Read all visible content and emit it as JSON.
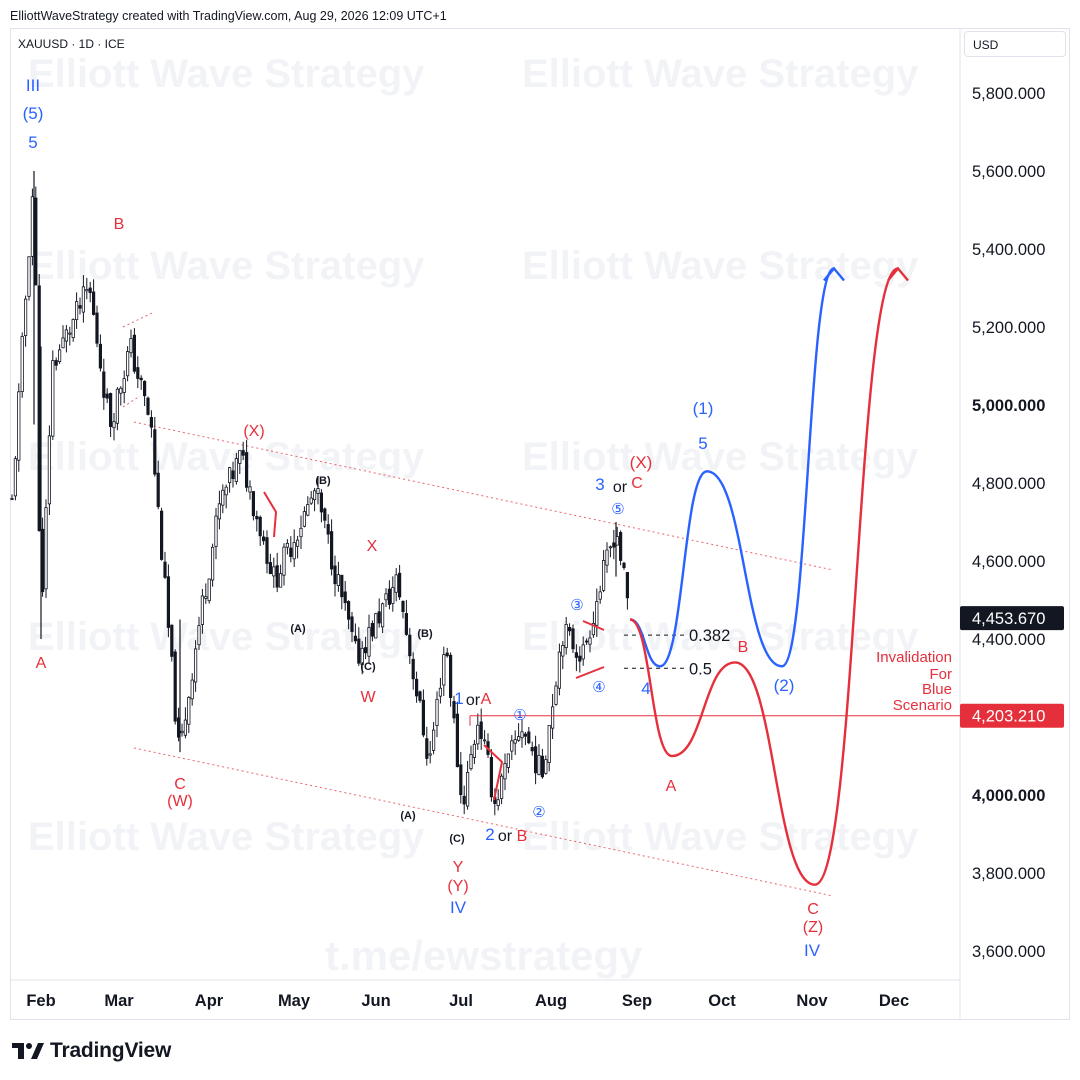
{
  "header": {
    "credit": "ElliottWaveStrategy created with TradingView.com, Aug 29, 2026 12:09 UTC+1",
    "symbol": "XAUUSD · 1D · ICE",
    "currency": "USD"
  },
  "footer": {
    "brand": "TradingView"
  },
  "watermarks": {
    "brand": "Elliott Wave Strategy",
    "channel": "t.me/ewstrategy"
  },
  "colors": {
    "red": "#e5303c",
    "blue": "#2962ff",
    "bull": "#131722",
    "channel": "#e5303c"
  },
  "chart_data": {
    "type": "candlestick",
    "x_ticks": [
      "Feb",
      "Mar",
      "Apr",
      "May",
      "Jun",
      "Jul",
      "Aug",
      "Sep",
      "Oct",
      "Nov",
      "Dec"
    ],
    "y_ticks": [
      "5,800.000",
      "5,600.000",
      "5,400.000",
      "5,200.000",
      "5,000.000",
      "4,800.000",
      "4,600.000",
      "4,400.000",
      "4,000.000",
      "3,800.000",
      "3,600.000"
    ],
    "y_ticks_bold": [
      "5,000.000",
      "4,000.000"
    ],
    "ylim": [
      3540,
      5920
    ],
    "last_price": {
      "label": "4,453.670",
      "value": 4453.67
    },
    "invalidation": {
      "label": "4,203.210",
      "value": 4203.21
    },
    "price_path": [
      [
        "Feb",
        4750
      ],
      [
        "Feb",
        5600
      ],
      [
        "Feb",
        4400
      ],
      [
        "Feb",
        5100
      ],
      [
        "Mar",
        5300
      ],
      [
        "Mar",
        4950
      ],
      [
        "Mar",
        5150
      ],
      [
        "Mar",
        4950
      ],
      [
        "Apr",
        4100
      ],
      [
        "Apr",
        4450
      ],
      [
        "Apr",
        4750
      ],
      [
        "Apr",
        4870
      ],
      [
        "May",
        4550
      ],
      [
        "May",
        4780
      ],
      [
        "Jun",
        4350
      ],
      [
        "Jun",
        4550
      ],
      [
        "Jul",
        4080
      ],
      [
        "Jul",
        4400
      ],
      [
        "Jul",
        3970
      ],
      [
        "Jul",
        4200
      ],
      [
        "Jul",
        3980
      ],
      [
        "Aug",
        4180
      ],
      [
        "Aug",
        4050
      ],
      [
        "Aug",
        4420
      ],
      [
        "Aug",
        4360
      ],
      [
        "Sep",
        4690
      ],
      [
        "Sep",
        4450
      ]
    ],
    "fib_levels": [
      {
        "label": "0.382",
        "value": 4410
      },
      {
        "label": "0.5",
        "value": 4325
      }
    ],
    "projections": [
      {
        "name": "Blue scenario",
        "color": "#2962ff",
        "points": [
          [
            "Sep",
            4450
          ],
          [
            "Sep",
            4330
          ],
          [
            "Oct",
            4830
          ],
          [
            "Nov",
            4330
          ],
          [
            "Dec",
            5350
          ]
        ]
      },
      {
        "name": "Red scenario",
        "color": "#e5303c",
        "points": [
          [
            "Sep",
            4450
          ],
          [
            "Sep",
            4100
          ],
          [
            "Oct",
            4340
          ],
          [
            "Nov",
            3770
          ],
          [
            "Dec",
            5350
          ]
        ]
      }
    ],
    "wave_labels": [
      {
        "text": "III",
        "color": "blue"
      },
      {
        "text": "(5)",
        "color": "blue"
      },
      {
        "text": "5",
        "color": "blue"
      },
      {
        "text": "A",
        "color": "red"
      },
      {
        "text": "B",
        "color": "red"
      },
      {
        "text": "(X)",
        "color": "red"
      },
      {
        "text": "(B)",
        "color": "black"
      },
      {
        "text": "X",
        "color": "red"
      },
      {
        "text": "(A)",
        "color": "black"
      },
      {
        "text": "(C)",
        "color": "black"
      },
      {
        "text": "W",
        "color": "red"
      },
      {
        "text": "(B)",
        "color": "black"
      },
      {
        "text": "C",
        "color": "red"
      },
      {
        "text": "(W)",
        "color": "red"
      },
      {
        "text": "(A)",
        "color": "black"
      },
      {
        "text": "(C)",
        "color": "black"
      },
      {
        "text": "Y",
        "color": "red"
      },
      {
        "text": "(Y)",
        "color": "red"
      },
      {
        "text": "IV",
        "color": "blue"
      },
      {
        "text": "1",
        "color": "blue"
      },
      {
        "text": "or",
        "color": "black"
      },
      {
        "text": "A",
        "color": "red"
      },
      {
        "text": "2",
        "color": "blue"
      },
      {
        "text": "or",
        "color": "black"
      },
      {
        "text": "B",
        "color": "red"
      },
      {
        "text": "①",
        "color": "blue"
      },
      {
        "text": "②",
        "color": "blue"
      },
      {
        "text": "③",
        "color": "blue"
      },
      {
        "text": "④",
        "color": "blue"
      },
      {
        "text": "⑤",
        "color": "blue"
      },
      {
        "text": "3",
        "color": "blue"
      },
      {
        "text": "or",
        "color": "black"
      },
      {
        "text": "C",
        "color": "red"
      },
      {
        "text": "(X)",
        "color": "red"
      },
      {
        "text": "4",
        "color": "blue"
      },
      {
        "text": "(1)",
        "color": "blue"
      },
      {
        "text": "5",
        "color": "blue"
      },
      {
        "text": "(2)",
        "color": "blue"
      },
      {
        "text": "A",
        "color": "red"
      },
      {
        "text": "B",
        "color": "red"
      },
      {
        "text": "C",
        "color": "red"
      },
      {
        "text": "(Z)",
        "color": "red"
      },
      {
        "text": "IV",
        "color": "blue"
      }
    ],
    "invalidation_note": [
      "Invalidation",
      "For",
      "Blue",
      "Scenario"
    ]
  }
}
